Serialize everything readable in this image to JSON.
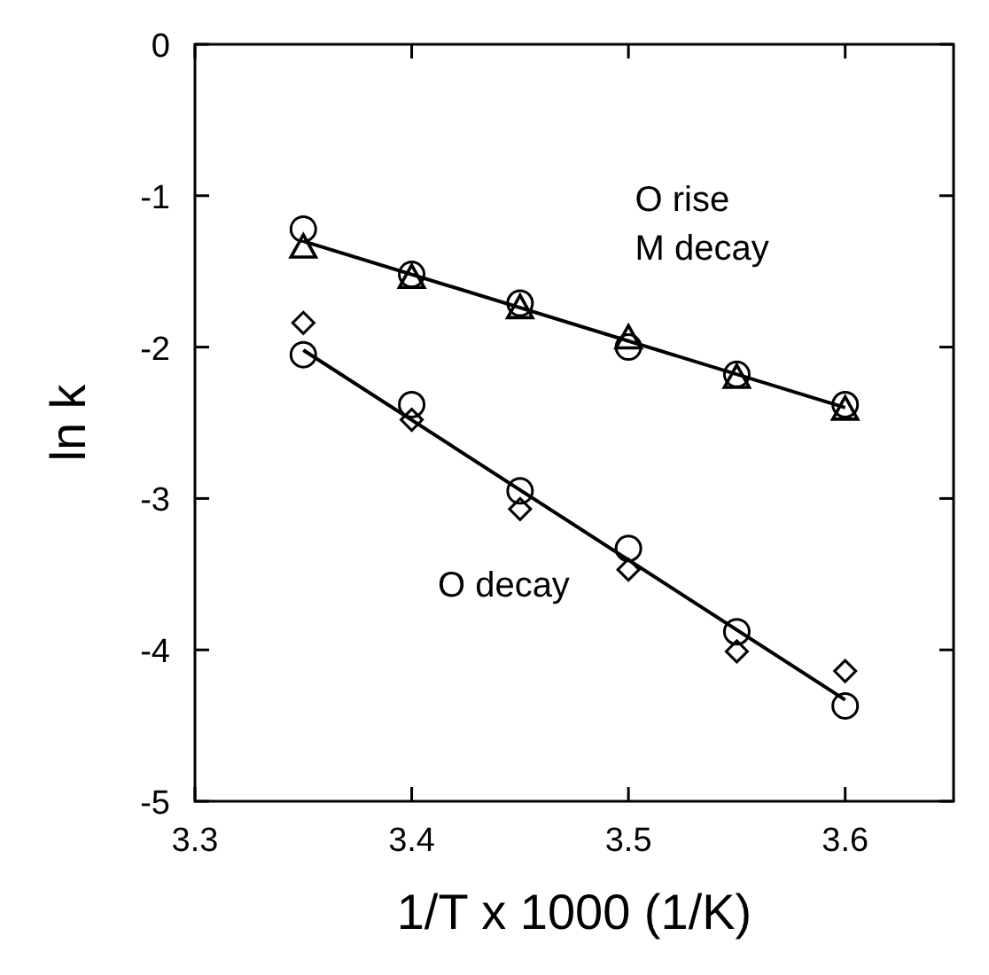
{
  "chart_data": {
    "type": "scatter",
    "xlabel": "1/T x 1000 (1/K)",
    "ylabel": "ln k",
    "xlim": [
      3.3,
      3.65
    ],
    "ylim": [
      -5,
      0
    ],
    "xticks": [
      3.3,
      3.4,
      3.5,
      3.6
    ],
    "yticks": [
      0,
      -1,
      -2,
      -3,
      -4,
      -5
    ],
    "grid": false,
    "annotations": [
      "O rise",
      "M decay",
      "O decay"
    ],
    "series": [
      {
        "color": "#000000",
        "marker": "circle",
        "x": [
          3.35,
          3.4,
          3.45,
          3.5,
          3.55,
          3.6
        ],
        "values": [
          -1.22,
          -1.52,
          -1.71,
          -2.0,
          -2.18,
          -2.38
        ]
      },
      {
        "color": "#000000",
        "marker": "triangle",
        "x": [
          3.35,
          3.4,
          3.45,
          3.5,
          3.55,
          3.6
        ],
        "values": [
          -1.34,
          -1.54,
          -1.74,
          -1.94,
          -2.2,
          -2.41
        ]
      },
      {
        "color": "#000000",
        "marker": "circle",
        "x": [
          3.35,
          3.4,
          3.45,
          3.5,
          3.55,
          3.6
        ],
        "values": [
          -2.05,
          -2.38,
          -2.95,
          -3.33,
          -3.88,
          -4.37
        ]
      },
      {
        "color": "#000000",
        "marker": "diamond",
        "x": [
          3.35,
          3.4,
          3.45,
          3.5,
          3.55,
          3.6
        ],
        "values": [
          -1.84,
          -2.48,
          -3.07,
          -3.47,
          -4.01,
          -4.14
        ]
      },
      {
        "type": "line",
        "color": "#000000",
        "marker": "none",
        "line_style": "solid",
        "x": [
          3.35,
          3.6
        ],
        "values": [
          -1.3,
          -2.4
        ]
      },
      {
        "type": "line",
        "color": "#000000",
        "marker": "none",
        "line_style": "solid",
        "x": [
          3.35,
          3.6
        ],
        "values": [
          -2.02,
          -4.33
        ]
      }
    ]
  }
}
